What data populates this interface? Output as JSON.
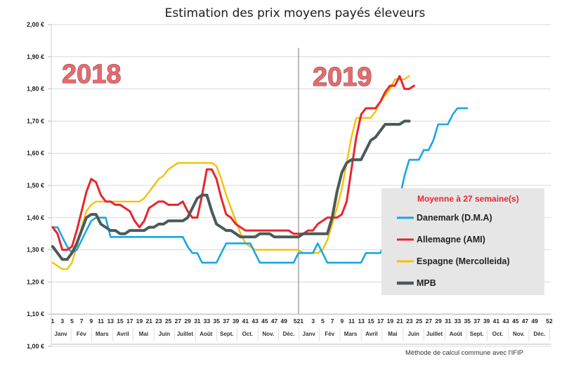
{
  "chart_data": {
    "type": "line",
    "title": "Estimation des prix moyens payés éleveurs",
    "xlabel": "",
    "ylabel": "",
    "ylim": [
      1.0,
      2.0
    ],
    "yticks": [
      "1,00 €",
      "1,10 €",
      "1,20 €",
      "1,30 €",
      "1,40 €",
      "1,50 €",
      "1,60 €",
      "1,70 €",
      "1,80 €",
      "1,90 €",
      "2,00 €"
    ],
    "grid": true,
    "x_tick_labels": [
      "1",
      "3",
      "5",
      "7",
      "9",
      "11",
      "13",
      "15",
      "17",
      "19",
      "21",
      "23",
      "25",
      "27",
      "29",
      "31",
      "33",
      "35",
      "37",
      "39",
      "41",
      "43",
      "45",
      "47",
      "49",
      "521",
      "3",
      "5",
      "7",
      "9",
      "11",
      "13",
      "15",
      "17",
      "19",
      "21",
      "23",
      "25",
      "27",
      "29",
      "31",
      "33",
      "35",
      "37",
      "39",
      "41",
      "43",
      "45",
      "47",
      "49",
      "52"
    ],
    "month_labels": [
      "Janv",
      "Fév",
      "Mars",
      "Avril",
      "Mai",
      "Juin",
      "Juillet",
      "Août",
      "Sept.",
      "Oct.",
      "Nov.",
      "Déc.",
      "Janv",
      "Fév",
      "Mars",
      "Avril",
      "Mai",
      "Juin",
      "Juillet",
      "Août",
      "Sept.",
      "Oct.",
      "Nov.",
      "Déc."
    ],
    "year_labels": [
      "2018",
      "2019"
    ],
    "x_description": "Weeks 1-52 of 2018 followed by weeks 1-27 of 2019",
    "legend": {
      "title": "Moyenne à  27 semaine(s)",
      "placement": "right"
    },
    "series": [
      {
        "name": "Danemark (D.M.A)",
        "color": "#1aa7e0",
        "values": [
          1.37,
          1.37,
          1.34,
          1.31,
          1.29,
          1.3,
          1.33,
          1.36,
          1.39,
          1.4,
          1.4,
          1.4,
          1.34,
          1.34,
          1.34,
          1.34,
          1.34,
          1.34,
          1.34,
          1.34,
          1.34,
          1.34,
          1.34,
          1.34,
          1.34,
          1.34,
          1.34,
          1.34,
          1.31,
          1.29,
          1.29,
          1.26,
          1.26,
          1.26,
          1.26,
          1.29,
          1.32,
          1.32,
          1.32,
          1.32,
          1.32,
          1.32,
          1.29,
          1.26,
          1.26,
          1.26,
          1.26,
          1.26,
          1.26,
          1.26,
          1.26,
          1.29,
          1.29,
          1.29,
          1.29,
          1.32,
          1.29,
          1.26,
          1.26,
          1.26,
          1.26,
          1.26,
          1.26,
          1.26,
          1.26,
          1.29,
          1.29,
          1.29,
          1.29,
          1.32,
          1.35,
          1.38,
          1.46,
          1.53,
          1.58,
          1.58,
          1.58,
          1.61,
          1.61,
          1.64,
          1.69,
          1.69,
          1.69,
          1.72,
          1.74,
          1.74,
          1.74
        ]
      },
      {
        "name": "Allemagne (AMI)",
        "color": "#e8262d",
        "values": [
          1.37,
          1.35,
          1.3,
          1.3,
          1.31,
          1.36,
          1.42,
          1.48,
          1.52,
          1.51,
          1.47,
          1.45,
          1.45,
          1.44,
          1.44,
          1.43,
          1.42,
          1.39,
          1.37,
          1.39,
          1.43,
          1.44,
          1.45,
          1.45,
          1.44,
          1.44,
          1.44,
          1.45,
          1.42,
          1.4,
          1.4,
          1.47,
          1.55,
          1.55,
          1.52,
          1.46,
          1.41,
          1.4,
          1.38,
          1.37,
          1.36,
          1.36,
          1.36,
          1.36,
          1.36,
          1.36,
          1.36,
          1.36,
          1.36,
          1.36,
          1.35,
          1.35,
          1.35,
          1.36,
          1.36,
          1.38,
          1.39,
          1.4,
          1.4,
          1.4,
          1.41,
          1.45,
          1.55,
          1.65,
          1.72,
          1.74,
          1.74,
          1.74,
          1.76,
          1.79,
          1.81,
          1.81,
          1.84,
          1.8,
          1.8,
          1.81
        ]
      },
      {
        "name": "Espagne (Mercolleida)",
        "color": "#f6c100",
        "values": [
          1.26,
          1.25,
          1.24,
          1.24,
          1.26,
          1.31,
          1.37,
          1.42,
          1.44,
          1.45,
          1.45,
          1.45,
          1.45,
          1.45,
          1.45,
          1.45,
          1.45,
          1.45,
          1.45,
          1.46,
          1.48,
          1.5,
          1.52,
          1.53,
          1.55,
          1.56,
          1.57,
          1.57,
          1.57,
          1.57,
          1.57,
          1.57,
          1.57,
          1.57,
          1.56,
          1.52,
          1.47,
          1.43,
          1.39,
          1.35,
          1.32,
          1.31,
          1.3,
          1.3,
          1.3,
          1.3,
          1.3,
          1.3,
          1.3,
          1.3,
          1.3,
          1.3,
          1.29,
          1.29,
          1.29,
          1.29,
          1.3,
          1.33,
          1.38,
          1.43,
          1.49,
          1.57,
          1.65,
          1.71,
          1.71,
          1.71,
          1.71,
          1.73,
          1.76,
          1.78,
          1.8,
          1.83,
          1.83,
          1.83,
          1.84
        ]
      },
      {
        "name": "MPB",
        "color": "#4a5a5a",
        "values": [
          1.31,
          1.29,
          1.27,
          1.27,
          1.29,
          1.32,
          1.36,
          1.4,
          1.41,
          1.41,
          1.38,
          1.37,
          1.36,
          1.36,
          1.35,
          1.35,
          1.36,
          1.36,
          1.36,
          1.36,
          1.37,
          1.37,
          1.38,
          1.38,
          1.39,
          1.39,
          1.39,
          1.39,
          1.4,
          1.43,
          1.46,
          1.47,
          1.47,
          1.42,
          1.38,
          1.37,
          1.36,
          1.36,
          1.35,
          1.34,
          1.34,
          1.34,
          1.34,
          1.35,
          1.35,
          1.35,
          1.34,
          1.34,
          1.34,
          1.34,
          1.34,
          1.34,
          1.35,
          1.35,
          1.35,
          1.35,
          1.35,
          1.35,
          1.4,
          1.48,
          1.54,
          1.57,
          1.58,
          1.58,
          1.58,
          1.61,
          1.64,
          1.65,
          1.67,
          1.69,
          1.69,
          1.69,
          1.69,
          1.7,
          1.7
        ]
      }
    ],
    "annotations": [
      "Méthode de calcul commune avec l'IFIP"
    ]
  }
}
